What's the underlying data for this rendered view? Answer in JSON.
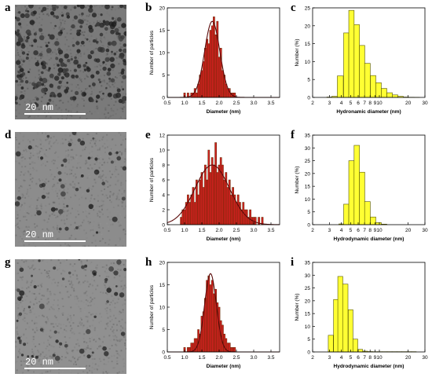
{
  "figure": {
    "panels": [
      {
        "letter": "a",
        "scale_label": "20 nm"
      },
      {
        "letter": "b"
      },
      {
        "letter": "c"
      },
      {
        "letter": "d",
        "scale_label": "20 nm"
      },
      {
        "letter": "e"
      },
      {
        "letter": "f"
      },
      {
        "letter": "g",
        "scale_label": "20 nm"
      },
      {
        "letter": "h"
      },
      {
        "letter": "i"
      }
    ]
  },
  "chart_data": [
    {
      "panel": "b",
      "type": "bar",
      "xlabel": "Diameter (nm)",
      "ylabel": "Number of particles",
      "xlim": [
        0.5,
        3.75
      ],
      "ylim": [
        0,
        20
      ],
      "xticks": [
        "0.5",
        "1.0",
        "1.5",
        "2.0",
        "2.5",
        "3.0",
        "3.5"
      ],
      "yticks": [
        "0",
        "5",
        "10",
        "15",
        "20"
      ],
      "bin_width": 0.05,
      "x": [
        1.0,
        1.05,
        1.1,
        1.15,
        1.2,
        1.25,
        1.3,
        1.35,
        1.4,
        1.45,
        1.5,
        1.55,
        1.6,
        1.65,
        1.7,
        1.75,
        1.8,
        1.85,
        1.9,
        1.95,
        2.0,
        2.05,
        2.1,
        2.15,
        2.2,
        2.25,
        2.3,
        2.35,
        2.4,
        2.45
      ],
      "values": [
        1,
        0,
        1,
        0,
        1,
        1,
        2,
        1,
        3,
        5,
        6,
        8,
        11,
        13,
        12,
        15,
        16,
        18,
        14,
        17,
        9,
        11,
        6,
        5,
        3,
        2,
        2,
        1,
        1,
        1
      ],
      "fit": {
        "mean": 1.8,
        "sigma": 0.22,
        "amplitude": 17
      }
    },
    {
      "panel": "c",
      "type": "bar",
      "xlabel": "Hydronamic diameter (nm)",
      "ylabel": "Number (%)",
      "xscale": "log",
      "xlim": [
        2,
        30
      ],
      "ylim": [
        0,
        25
      ],
      "xticks": [
        "2",
        "3",
        "4",
        "5",
        "6",
        "7",
        "8",
        "9",
        "10",
        "20",
        "30"
      ],
      "yticks": [
        "0",
        "5",
        "10",
        "15",
        "20",
        "25"
      ],
      "x": [
        3.0,
        3.4,
        3.9,
        4.5,
        5.1,
        5.8,
        6.6,
        7.5,
        8.6,
        9.8,
        11.2,
        12.8,
        14.6,
        16.7,
        19.0,
        21.7,
        24.7
      ],
      "values": [
        0.1,
        0.3,
        6,
        18,
        24.3,
        20.3,
        14.5,
        9.5,
        6.1,
        4.1,
        2.5,
        1.3,
        0.7,
        0.3,
        0.1,
        0.05,
        0.02
      ]
    },
    {
      "panel": "e",
      "type": "bar",
      "xlabel": "Diameter (nm)",
      "ylabel": "Number of particles",
      "xlim": [
        0.5,
        3.75
      ],
      "ylim": [
        0,
        12
      ],
      "xticks": [
        "0.5",
        "1.0",
        "1.5",
        "2.0",
        "2.5",
        "3.0",
        "3.5"
      ],
      "yticks": [
        "0",
        "2",
        "4",
        "6",
        "8",
        "10",
        "12"
      ],
      "bin_width": 0.05,
      "x": [
        0.9,
        0.95,
        1.0,
        1.05,
        1.1,
        1.15,
        1.2,
        1.25,
        1.3,
        1.35,
        1.4,
        1.45,
        1.5,
        1.55,
        1.6,
        1.65,
        1.7,
        1.75,
        1.8,
        1.85,
        1.9,
        1.95,
        2.0,
        2.05,
        2.1,
        2.15,
        2.2,
        2.25,
        2.3,
        2.35,
        2.4,
        2.45,
        2.5,
        2.55,
        2.6,
        2.65,
        2.7,
        2.75,
        2.8,
        2.85,
        2.9,
        2.95,
        3.0,
        3.05,
        3.1,
        3.15,
        3.2,
        3.25
      ],
      "values": [
        1,
        2,
        2,
        3,
        4,
        3,
        4,
        5,
        3,
        6,
        4,
        6,
        7,
        5,
        8,
        6,
        10,
        7,
        9,
        8,
        11,
        7,
        8,
        9,
        8,
        6,
        7,
        5,
        6,
        4,
        5,
        4,
        3,
        4,
        3,
        2,
        3,
        2,
        2,
        1,
        2,
        1,
        1,
        1,
        0,
        1,
        0,
        1
      ],
      "fit": {
        "mean": 1.8,
        "sigma": 0.5,
        "amplitude": 8
      }
    },
    {
      "panel": "f",
      "type": "bar",
      "xlabel": "Hydrodynamic diameter (nm)",
      "ylabel": "Number (%)",
      "xscale": "log",
      "xlim": [
        2,
        30
      ],
      "ylim": [
        0,
        35
      ],
      "xticks": [
        "2",
        "3",
        "4",
        "5",
        "6",
        "7",
        "8",
        "9",
        "10",
        "20",
        "30"
      ],
      "yticks": [
        "0",
        "5",
        "10",
        "15",
        "20",
        "25",
        "30",
        "35"
      ],
      "x": [
        4.0,
        4.5,
        5.1,
        5.8,
        6.6,
        7.5,
        8.6,
        9.8,
        11.2
      ],
      "values": [
        0.3,
        8,
        25,
        31,
        20.5,
        9,
        3,
        0.8,
        0.2
      ]
    },
    {
      "panel": "h",
      "type": "bar",
      "xlabel": "Diameter (nm)",
      "ylabel": "Number of particles",
      "xlim": [
        0.5,
        3.75
      ],
      "ylim": [
        0,
        20
      ],
      "xticks": [
        "0.5",
        "1.0",
        "1.5",
        "2.0",
        "2.5",
        "3.0",
        "3.5"
      ],
      "yticks": [
        "0",
        "5",
        "10",
        "15",
        "20"
      ],
      "bin_width": 0.05,
      "x": [
        1.0,
        1.05,
        1.1,
        1.15,
        1.2,
        1.25,
        1.3,
        1.35,
        1.4,
        1.45,
        1.5,
        1.55,
        1.6,
        1.65,
        1.7,
        1.75,
        1.8,
        1.85,
        1.9,
        1.95,
        2.0,
        2.05,
        2.1,
        2.15,
        2.2,
        2.25,
        2.3,
        2.35,
        2.4,
        2.45
      ],
      "values": [
        1,
        0,
        1,
        1,
        2,
        2,
        3,
        3,
        5,
        4,
        8,
        9,
        12,
        16,
        17,
        15,
        16,
        13,
        14,
        11,
        10,
        7,
        6,
        4,
        3,
        2,
        2,
        1,
        1,
        1
      ],
      "fit": {
        "mean": 1.75,
        "sigma": 0.17,
        "amplitude": 17.5
      }
    },
    {
      "panel": "i",
      "type": "bar",
      "xlabel": "Hydrodynamic diameter (nm)",
      "ylabel": "Number (%)",
      "xscale": "log",
      "xlim": [
        2,
        30
      ],
      "ylim": [
        0,
        35
      ],
      "xticks": [
        "2",
        "3",
        "4",
        "5",
        "6",
        "7",
        "8",
        "9",
        "10",
        "20",
        "30"
      ],
      "yticks": [
        "0",
        "5",
        "10",
        "15",
        "20",
        "25",
        "30",
        "35"
      ],
      "x": [
        3.1,
        3.5,
        3.9,
        4.4,
        5.0,
        5.6,
        6.3,
        7.1,
        8.0,
        9.0,
        10.1,
        11.4,
        12.8,
        14.4,
        16.2,
        18.2,
        20.5,
        23.0
      ],
      "values": [
        6.5,
        20.5,
        29.5,
        26.5,
        16.5,
        5,
        1,
        0.3,
        0.15,
        0.1,
        0.1,
        0.1,
        0.1,
        0.1,
        0.1,
        0.1,
        0.1,
        0.1
      ]
    }
  ]
}
